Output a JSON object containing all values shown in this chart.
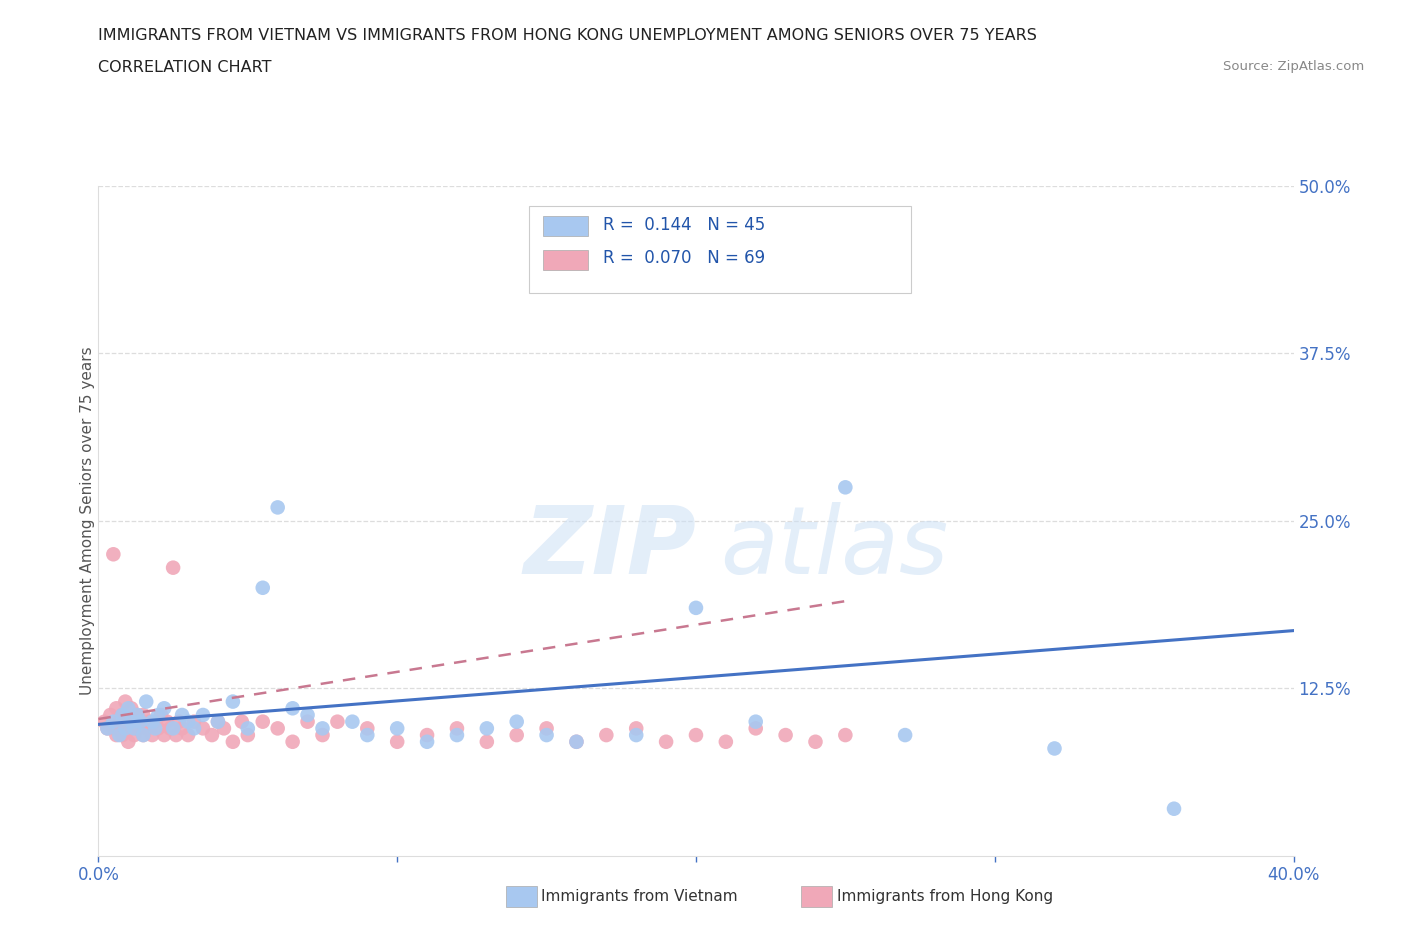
{
  "title_line1": "IMMIGRANTS FROM VIETNAM VS IMMIGRANTS FROM HONG KONG UNEMPLOYMENT AMONG SENIORS OVER 75 YEARS",
  "title_line2": "CORRELATION CHART",
  "source_text": "Source: ZipAtlas.com",
  "ylabel": "Unemployment Among Seniors over 75 years",
  "xlim": [
    0.0,
    0.4
  ],
  "ylim": [
    0.0,
    0.5
  ],
  "r_vietnam": 0.144,
  "n_vietnam": 45,
  "r_hongkong": 0.07,
  "n_hongkong": 69,
  "color_vietnam": "#a8c8f0",
  "color_hongkong": "#f0a8b8",
  "trend_color_vietnam": "#4472c4",
  "trend_color_hongkong": "#c87890",
  "tick_color": "#4472c4",
  "label_color": "#555555",
  "grid_color": "#dddddd",
  "vietnam_x": [
    0.003,
    0.005,
    0.007,
    0.008,
    0.009,
    0.01,
    0.011,
    0.012,
    0.013,
    0.014,
    0.015,
    0.016,
    0.018,
    0.019,
    0.02,
    0.022,
    0.025,
    0.028,
    0.03,
    0.032,
    0.035,
    0.04,
    0.045,
    0.05,
    0.055,
    0.06,
    0.065,
    0.07,
    0.075,
    0.085,
    0.09,
    0.1,
    0.11,
    0.12,
    0.13,
    0.14,
    0.15,
    0.16,
    0.18,
    0.2,
    0.22,
    0.25,
    0.27,
    0.32,
    0.36
  ],
  "vietnam_y": [
    0.095,
    0.1,
    0.09,
    0.105,
    0.095,
    0.11,
    0.1,
    0.095,
    0.105,
    0.1,
    0.09,
    0.115,
    0.1,
    0.095,
    0.105,
    0.11,
    0.095,
    0.105,
    0.1,
    0.095,
    0.105,
    0.1,
    0.115,
    0.095,
    0.2,
    0.26,
    0.11,
    0.105,
    0.095,
    0.1,
    0.09,
    0.095,
    0.085,
    0.09,
    0.095,
    0.1,
    0.09,
    0.085,
    0.09,
    0.185,
    0.1,
    0.275,
    0.09,
    0.08,
    0.035
  ],
  "hongkong_x": [
    0.002,
    0.003,
    0.004,
    0.005,
    0.005,
    0.006,
    0.006,
    0.007,
    0.007,
    0.008,
    0.008,
    0.009,
    0.009,
    0.01,
    0.01,
    0.011,
    0.011,
    0.012,
    0.012,
    0.013,
    0.013,
    0.014,
    0.015,
    0.015,
    0.016,
    0.017,
    0.018,
    0.019,
    0.02,
    0.021,
    0.022,
    0.023,
    0.024,
    0.025,
    0.026,
    0.027,
    0.028,
    0.03,
    0.032,
    0.035,
    0.038,
    0.04,
    0.042,
    0.045,
    0.048,
    0.05,
    0.055,
    0.06,
    0.065,
    0.07,
    0.075,
    0.08,
    0.09,
    0.1,
    0.11,
    0.12,
    0.13,
    0.14,
    0.15,
    0.16,
    0.17,
    0.18,
    0.19,
    0.2,
    0.21,
    0.22,
    0.23,
    0.24,
    0.25
  ],
  "hongkong_y": [
    0.1,
    0.095,
    0.105,
    0.225,
    0.095,
    0.11,
    0.09,
    0.1,
    0.095,
    0.105,
    0.09,
    0.115,
    0.095,
    0.1,
    0.085,
    0.11,
    0.095,
    0.1,
    0.09,
    0.105,
    0.095,
    0.1,
    0.09,
    0.105,
    0.095,
    0.1,
    0.09,
    0.1,
    0.095,
    0.105,
    0.09,
    0.1,
    0.095,
    0.215,
    0.09,
    0.1,
    0.095,
    0.09,
    0.1,
    0.095,
    0.09,
    0.1,
    0.095,
    0.085,
    0.1,
    0.09,
    0.1,
    0.095,
    0.085,
    0.1,
    0.09,
    0.1,
    0.095,
    0.085,
    0.09,
    0.095,
    0.085,
    0.09,
    0.095,
    0.085,
    0.09,
    0.095,
    0.085,
    0.09,
    0.085,
    0.095,
    0.09,
    0.085,
    0.09
  ],
  "trend_vietnam_x0": 0.0,
  "trend_vietnam_x1": 0.4,
  "trend_vietnam_y0": 0.098,
  "trend_vietnam_y1": 0.168,
  "trend_hk_x0": 0.0,
  "trend_hk_x1": 0.25,
  "trend_hk_y0": 0.102,
  "trend_hk_y1": 0.19
}
